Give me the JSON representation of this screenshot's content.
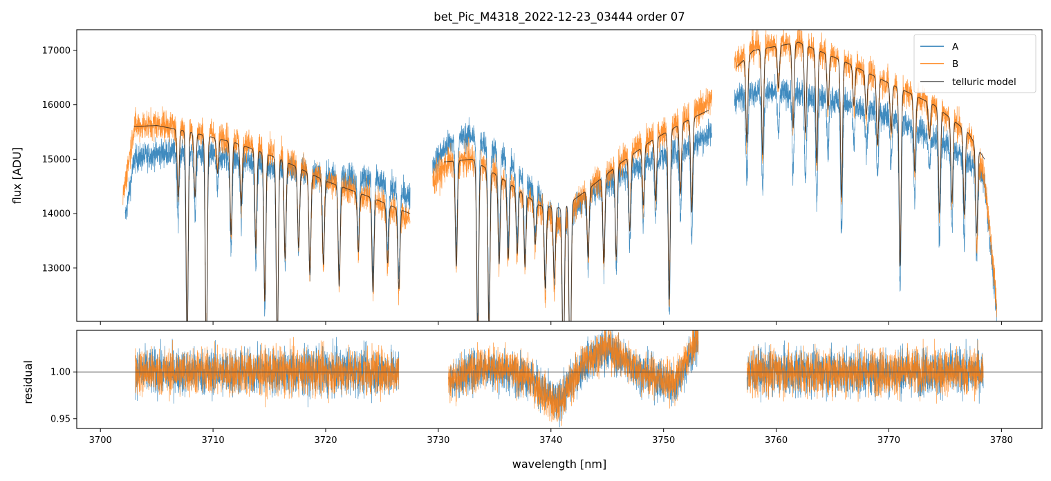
{
  "chart_data": [
    {
      "type": "line",
      "panel": "top",
      "title": "bet_Pic_M4318_2022-12-23_03444  order 07",
      "xlabel": "",
      "ylabel": "flux [ADU]",
      "xlim": [
        3697.9,
        3783.6
      ],
      "ylim": [
        12020,
        17380
      ],
      "yticks": [
        13000,
        14000,
        15000,
        16000,
        17000
      ],
      "xticks": [
        3700,
        3710,
        3720,
        3730,
        3740,
        3750,
        3760,
        3770,
        3780
      ],
      "legend_position": "top-right",
      "series": [
        {
          "name": "A",
          "color": "#1f77b4",
          "segments": [
            {
              "x": [
                3702.2,
                3703.0,
                3705.0,
                3708.0,
                3712.0,
                3716.0,
                3720.0,
                3724.0,
                3727.5
              ],
              "y": [
                13900,
                15000,
                15100,
                15150,
                15000,
                14850,
                14700,
                14650,
                14300
              ]
            },
            {
              "x": [
                3729.5,
                3731.0,
                3733.0,
                3736.0,
                3739.0,
                3741.0,
                3743.0,
                3746.0,
                3749.0,
                3752.0,
                3754.3
              ],
              "y": [
                14900,
                15300,
                15450,
                15000,
                14300,
                13800,
                14300,
                14700,
                15000,
                15200,
                15500
              ]
            },
            {
              "x": [
                3756.3,
                3758.0,
                3762.0,
                3766.0,
                3770.0,
                3774.0,
                3777.0,
                3778.5,
                3779.6
              ],
              "y": [
                16100,
                16250,
                16200,
                16050,
                15800,
                15400,
                15000,
                14600,
                12100
              ]
            }
          ]
        },
        {
          "name": "B",
          "color": "#ff7f0e",
          "segments": [
            {
              "x": [
                3702.0,
                3703.0,
                3705.0,
                3708.0,
                3712.0,
                3716.0,
                3720.0,
                3724.0,
                3727.5
              ],
              "y": [
                14300,
                15600,
                15650,
                15550,
                15350,
                15050,
                14600,
                14300,
                13900
              ]
            },
            {
              "x": [
                3729.5,
                3731.0,
                3733.0,
                3736.0,
                3739.0,
                3741.0,
                3743.0,
                3746.0,
                3749.0,
                3752.0,
                3754.3
              ],
              "y": [
                14600,
                14950,
                15000,
                14600,
                14100,
                13800,
                14400,
                14950,
                15400,
                15750,
                16100
              ]
            },
            {
              "x": [
                3756.3,
                3758.0,
                3762.0,
                3766.0,
                3770.0,
                3774.0,
                3777.0,
                3778.5,
                3779.6
              ],
              "y": [
                16800,
                17050,
                17150,
                16800,
                16400,
                16000,
                15500,
                14700,
                12300
              ]
            }
          ]
        },
        {
          "name": "telluric model",
          "color": "#555555",
          "segments": [
            {
              "x": [
                3703.0,
                3705.0,
                3708.0,
                3712.0,
                3716.0,
                3720.0,
                3724.0,
                3727.5
              ],
              "y": [
                15600,
                15620,
                15500,
                15300,
                15000,
                14600,
                14300,
                14000
              ]
            },
            {
              "x": [
                3730.5,
                3733.0,
                3736.0,
                3739.0,
                3741.0,
                3743.0,
                3746.0,
                3749.0,
                3752.0,
                3754.0
              ],
              "y": [
                14950,
                15000,
                14600,
                14150,
                14100,
                14400,
                14900,
                15350,
                15700,
                15900
              ]
            },
            {
              "x": [
                3756.5,
                3758.0,
                3762.0,
                3766.0,
                3770.0,
                3774.0,
                3777.0,
                3778.5
              ],
              "y": [
                16700,
                17000,
                17150,
                16800,
                16400,
                16000,
                15500,
                15000
              ]
            }
          ]
        }
      ]
    },
    {
      "type": "line",
      "panel": "bottom",
      "xlabel": "wavelength [nm]",
      "ylabel": "residual",
      "xlim": [
        3697.9,
        3783.6
      ],
      "ylim": [
        0.9395,
        1.0445
      ],
      "yticks": [
        0.95,
        1.0
      ],
      "ytick_labels": [
        "0.95",
        "1.00"
      ],
      "xticks": [
        3700,
        3710,
        3720,
        3730,
        3740,
        3750,
        3760,
        3770,
        3780
      ],
      "reference_line": 1.0,
      "series": [
        {
          "name": "A",
          "color": "#1f77b4",
          "segments": [
            {
              "x": [
                3703.1,
                3710.0,
                3720.0,
                3726.5
              ],
              "y": [
                1.0,
                1.0,
                1.0,
                1.0
              ]
            },
            {
              "x": [
                3730.9,
                3734.0,
                3738.0,
                3740.5,
                3743.0,
                3745.0,
                3748.0,
                3751.0,
                3753.1
              ],
              "y": [
                0.99,
                1.005,
                0.995,
                0.965,
                1.01,
                1.025,
                1.0,
                0.985,
                1.035
              ]
            },
            {
              "x": [
                3757.4,
                3765.0,
                3772.0,
                3778.4
              ],
              "y": [
                1.0,
                1.0,
                1.0,
                1.0
              ]
            }
          ]
        },
        {
          "name": "B",
          "color": "#ff7f0e",
          "segments": [
            {
              "x": [
                3703.1,
                3710.0,
                3720.0,
                3726.5
              ],
              "y": [
                1.0,
                1.0,
                1.0,
                1.0
              ]
            },
            {
              "x": [
                3730.9,
                3734.0,
                3738.0,
                3740.5,
                3743.0,
                3745.0,
                3748.0,
                3751.0,
                3753.1
              ],
              "y": [
                0.99,
                1.008,
                0.995,
                0.962,
                1.012,
                1.028,
                1.0,
                0.988,
                1.04
              ]
            },
            {
              "x": [
                3757.4,
                3765.0,
                3772.0,
                3778.4
              ],
              "y": [
                1.0,
                1.0,
                1.0,
                1.0
              ]
            }
          ]
        }
      ]
    }
  ]
}
